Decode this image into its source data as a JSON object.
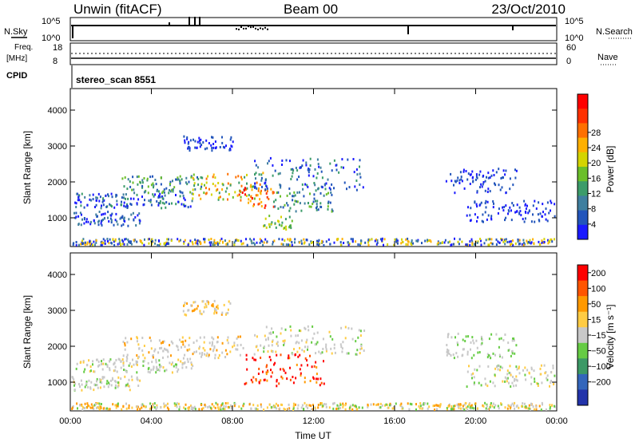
{
  "header": {
    "station": "Unwin (fitACF)",
    "beam": "Beam 00",
    "date": "23/Oct/2010"
  },
  "status_panels": {
    "nsky_label": "N.Sky",
    "nsearch_label": "N.Search",
    "nsky_ticks": [
      "10^5",
      "10^0"
    ],
    "nsearch_ticks": [
      "10^5",
      "10^0"
    ],
    "freq_label": "Freq.",
    "freq_unit": "[MHz]",
    "freq_ticks": [
      "18",
      "8"
    ],
    "nave_label": "Nave",
    "nave_ticks": [
      "60",
      "0"
    ],
    "cpid_label": "CPID",
    "cpid_value": "stereo_scan 8551"
  },
  "chart_data": [
    {
      "type": "heatmap",
      "panel": "power",
      "ylabel": "Slant Range [km]",
      "xlabel": "",
      "x_ticks": [
        "00:00",
        "04:00",
        "08:00",
        "12:00",
        "16:00",
        "20:00",
        "00:00"
      ],
      "xlim_hours": [
        0,
        24
      ],
      "y_ticks": [
        1000,
        2000,
        3000,
        4000
      ],
      "ylim": [
        200,
        4600
      ],
      "colorbar": {
        "label": "Power [dB]",
        "ticks": [
          "4",
          "8",
          "12",
          "16",
          "20",
          "24",
          "28"
        ],
        "colors": [
          "#1a1aff",
          "#2255bb",
          "#3f7f9f",
          "#3c9c6a",
          "#6bbf2a",
          "#d4d400",
          "#ffb000",
          "#ff7000",
          "#ff3000",
          "#ff0000"
        ]
      }
    },
    {
      "type": "heatmap",
      "panel": "velocity",
      "ylabel": "Slant Range [km]",
      "xlabel": "Time UT",
      "x_ticks": [
        "00:00",
        "04:00",
        "08:00",
        "12:00",
        "16:00",
        "20:00",
        "00:00"
      ],
      "xlim_hours": [
        0,
        24
      ],
      "y_ticks": [
        1000,
        2000,
        3000,
        4000
      ],
      "ylim": [
        200,
        4600
      ],
      "colorbar": {
        "label": "Velocity [m s⁻¹]",
        "ticks": [
          "200",
          "100",
          "50",
          "15",
          "−15",
          "−50",
          "−100",
          "−200"
        ],
        "colors": [
          "#2233aa",
          "#3366bb",
          "#3c9966",
          "#66cc44",
          "#c8c8c8",
          "#ffcc44",
          "#ff9900",
          "#ff5500",
          "#ff0000"
        ]
      }
    }
  ]
}
